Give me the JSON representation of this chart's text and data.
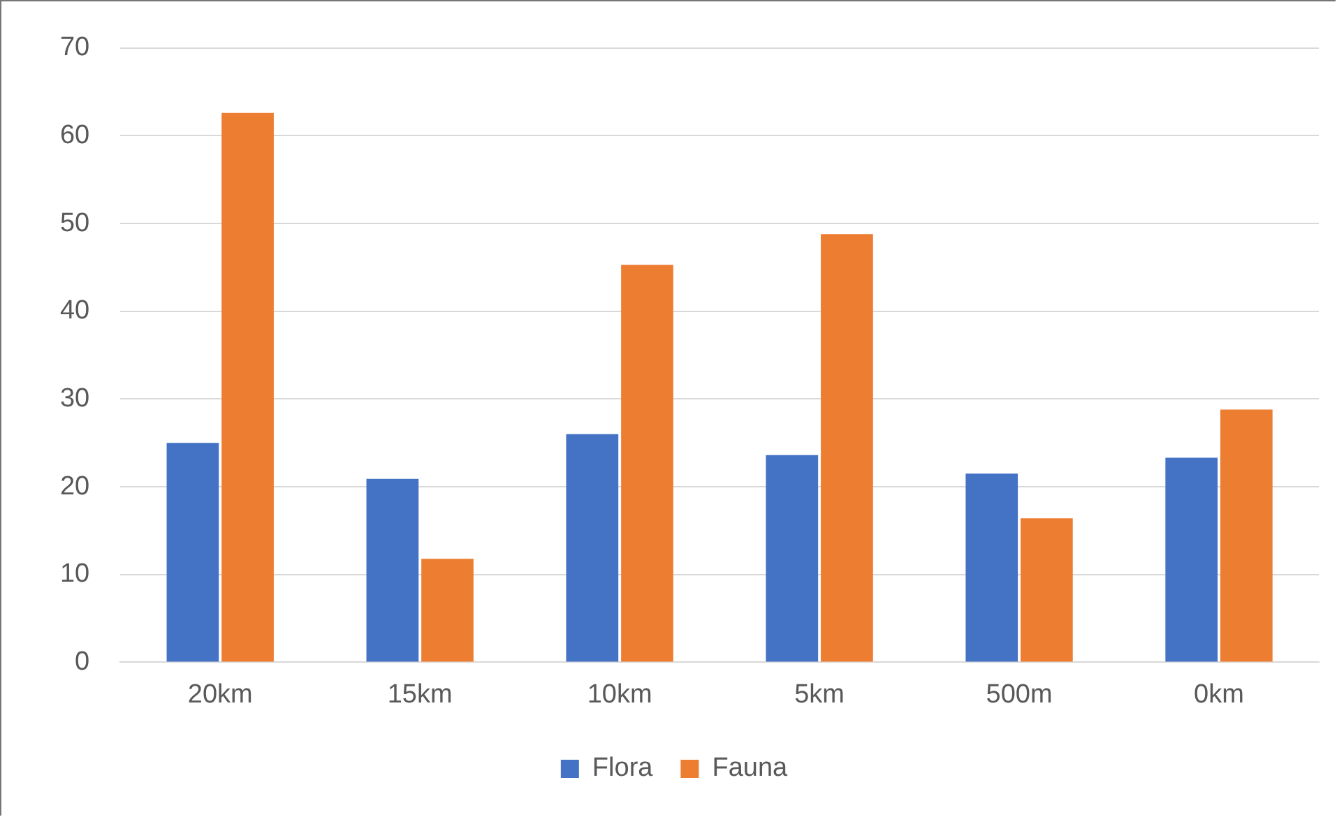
{
  "chart_data": {
    "type": "bar",
    "categories": [
      "20km",
      "15km",
      "10km",
      "5km",
      "500m",
      "0km"
    ],
    "series": [
      {
        "name": "Flora",
        "color": "#4472c4",
        "values": [
          25,
          20.9,
          26,
          23.6,
          21.5,
          23.3
        ]
      },
      {
        "name": "Fauna",
        "color": "#ed7d31",
        "values": [
          62.6,
          11.8,
          45.3,
          48.8,
          16.4,
          28.8
        ]
      }
    ],
    "ylim": [
      0,
      70
    ],
    "yticks": [
      0,
      10,
      20,
      30,
      40,
      50,
      60,
      70
    ],
    "grid": "y",
    "legend": "bottom"
  }
}
